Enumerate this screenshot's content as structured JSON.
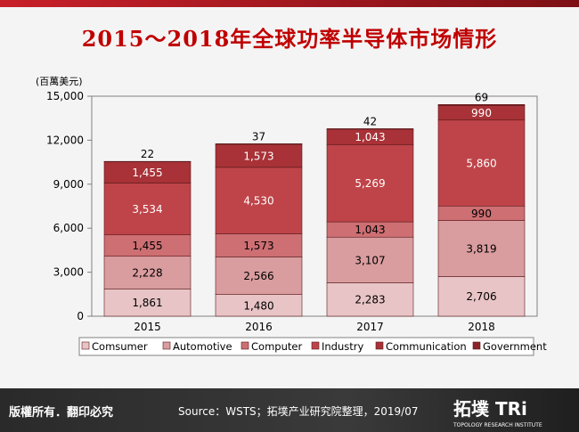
{
  "header": {
    "title": "2015～2018年全球功率半导体市场情形"
  },
  "footer": {
    "rights": "版權所有．翻印必究",
    "source": "Source：WSTS；拓墣产业研究院整理，2019/07"
  },
  "logo": {
    "name": "拓墣 TRi",
    "sub": "TOPOLOGY RESEARCH INSTITUTE"
  },
  "chart_data": {
    "type": "bar",
    "stacked": true,
    "title": "2015～2018年全球功率半导体市场情形",
    "ylabel": "(百萬美元)",
    "xlabel": "",
    "categories": [
      "2015",
      "2016",
      "2017",
      "2018"
    ],
    "ylim": [
      0,
      15000
    ],
    "yticks": [
      0,
      3000,
      6000,
      9000,
      12000,
      15000
    ],
    "ytick_labels": [
      "0",
      "3,000",
      "6,000",
      "9,000",
      "12,000",
      "15,000"
    ],
    "grid": false,
    "legend_position": "bottom",
    "series": [
      {
        "name": "Comsumer",
        "color": "#e8c4c6",
        "values": [
          1861,
          1480,
          2283,
          2706
        ],
        "labels": [
          "1,861",
          "1,480",
          "2,283",
          "2,706"
        ]
      },
      {
        "name": "Automotive",
        "color": "#d99c9f",
        "values": [
          2228,
          2566,
          3107,
          3819
        ],
        "labels": [
          "2,228",
          "2,566",
          "3,107",
          "3,819"
        ]
      },
      {
        "name": "Computer",
        "color": "#cd6f73",
        "values": [
          1455,
          1573,
          1043,
          990
        ],
        "labels": [
          "1,455",
          "1,573",
          "1,043",
          "990"
        ]
      },
      {
        "name": "Industry",
        "color": "#bf4449",
        "values": [
          3534,
          4530,
          5269,
          5860
        ],
        "labels": [
          "3,534",
          "4,530",
          "5,269",
          "5,860"
        ]
      },
      {
        "name": "Communication",
        "color": "#a83237",
        "values": [
          1455,
          1573,
          1043,
          990
        ],
        "labels": [
          "1,455",
          "1,573",
          "1,043",
          "990"
        ]
      },
      {
        "name": "Government",
        "color": "#8a2428",
        "values": [
          22,
          37,
          42,
          69
        ],
        "labels": [
          "22",
          "37",
          "42",
          "69"
        ]
      }
    ]
  }
}
